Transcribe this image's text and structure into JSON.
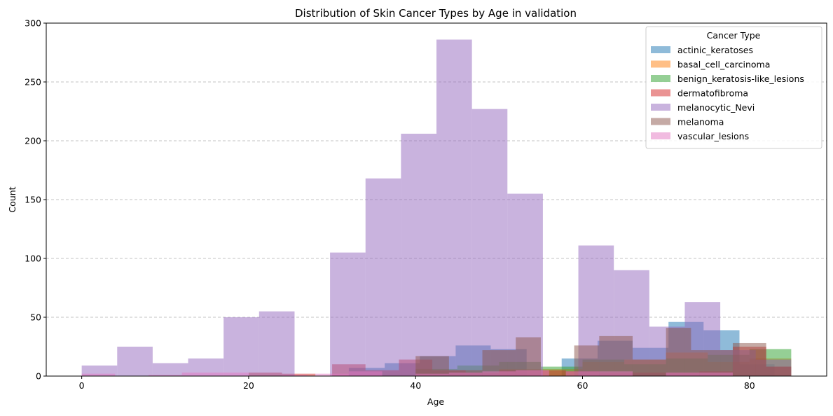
{
  "chart_data": {
    "type": "bar",
    "title": "Distribution of Skin Cancer Types by Age in validation",
    "xlabel": "Age",
    "ylabel": "Count",
    "xlim": [
      -4.25,
      89.25
    ],
    "ylim": [
      0,
      300
    ],
    "xticks": [
      0,
      20,
      40,
      60,
      80
    ],
    "yticks": [
      0,
      50,
      100,
      150,
      200,
      250,
      300
    ],
    "grid": {
      "axis": "y",
      "style": "dashed"
    },
    "legend": {
      "title": "Cancer Type",
      "position": "top-right"
    },
    "bar_alpha": 0.5,
    "series": [
      {
        "name": "actinic_keratoses",
        "color": "#1f77b4",
        "bins": [
          [
            32.0,
            36.3,
            7
          ],
          [
            36.3,
            40.5,
            11
          ],
          [
            40.5,
            44.8,
            17
          ],
          [
            44.8,
            49.0,
            26
          ],
          [
            49.0,
            53.3,
            23
          ],
          [
            57.5,
            61.8,
            15
          ],
          [
            61.8,
            66.0,
            30
          ],
          [
            66.0,
            70.3,
            24
          ],
          [
            70.3,
            74.5,
            46
          ],
          [
            74.5,
            78.8,
            39
          ],
          [
            78.8,
            83.0,
            10
          ]
        ]
      },
      {
        "name": "basal_cell_carcinoma",
        "color": "#ff7f0e",
        "bins": [
          [
            50.0,
            55.0,
            6
          ],
          [
            55.0,
            60.0,
            6
          ],
          [
            60.0,
            65.0,
            12
          ],
          [
            65.0,
            70.0,
            14
          ],
          [
            70.0,
            75.0,
            20
          ],
          [
            75.0,
            80.0,
            12
          ],
          [
            80.0,
            85.0,
            15
          ]
        ]
      },
      {
        "name": "benign_keratosis-like_lesions",
        "color": "#2ca02c",
        "bins": [
          [
            40.0,
            45.0,
            6
          ],
          [
            45.0,
            50.0,
            9
          ],
          [
            50.0,
            55.0,
            12
          ],
          [
            55.0,
            60.0,
            8
          ],
          [
            60.0,
            65.0,
            14
          ],
          [
            65.0,
            70.0,
            10
          ],
          [
            70.0,
            75.0,
            15
          ],
          [
            75.0,
            80.0,
            18
          ],
          [
            80.0,
            85.0,
            23
          ]
        ]
      },
      {
        "name": "dermatofibroma",
        "color": "#d62728",
        "bins": [
          [
            20.0,
            24.0,
            3
          ],
          [
            24.0,
            28.0,
            2
          ],
          [
            30.0,
            34.0,
            10
          ],
          [
            34.0,
            38.0,
            5
          ],
          [
            38.0,
            42.0,
            14
          ],
          [
            42.0,
            46.0,
            5
          ],
          [
            46.0,
            50.0,
            3
          ],
          [
            50.0,
            54.0,
            5
          ],
          [
            54.0,
            58.0,
            5
          ],
          [
            58.0,
            62.0,
            4
          ],
          [
            62.0,
            66.0,
            3
          ],
          [
            66.0,
            70.0,
            3
          ],
          [
            70.0,
            74.0,
            3
          ],
          [
            74.0,
            78.0,
            4
          ],
          [
            78.0,
            82.0,
            25
          ],
          [
            82.0,
            85.0,
            8
          ]
        ]
      },
      {
        "name": "melanocytic_Nevi",
        "color": "#9467bd",
        "bins": [
          [
            0.0,
            4.25,
            9
          ],
          [
            4.25,
            8.5,
            25
          ],
          [
            8.5,
            12.75,
            11
          ],
          [
            12.75,
            17.0,
            15
          ],
          [
            17.0,
            21.25,
            50
          ],
          [
            21.25,
            25.5,
            55
          ],
          [
            29.75,
            34.0,
            105
          ],
          [
            34.0,
            38.25,
            168
          ],
          [
            38.25,
            42.5,
            206
          ],
          [
            42.5,
            46.75,
            286
          ],
          [
            46.75,
            51.0,
            227
          ],
          [
            51.0,
            55.25,
            155
          ],
          [
            59.5,
            63.75,
            111
          ],
          [
            63.75,
            68.0,
            90
          ],
          [
            68.0,
            72.25,
            42
          ],
          [
            72.25,
            76.5,
            63
          ],
          [
            76.5,
            80.75,
            22
          ],
          [
            80.75,
            85.0,
            14
          ]
        ]
      },
      {
        "name": "melanoma",
        "color": "#8c564b",
        "bins": [
          [
            40.0,
            44.0,
            17
          ],
          [
            44.0,
            48.0,
            5
          ],
          [
            48.0,
            52.0,
            22
          ],
          [
            52.0,
            55.0,
            33
          ],
          [
            59.0,
            62.0,
            26
          ],
          [
            62.0,
            66.0,
            34
          ],
          [
            66.0,
            70.0,
            14
          ],
          [
            70.0,
            73.0,
            41
          ],
          [
            73.0,
            78.0,
            22
          ],
          [
            78.0,
            82.0,
            28
          ],
          [
            82.0,
            85.0,
            8
          ]
        ]
      },
      {
        "name": "vascular_lesions",
        "color": "#e377c2",
        "bins": [
          [
            0.0,
            4.0,
            2
          ],
          [
            8.0,
            12.0,
            1
          ],
          [
            12.0,
            16.0,
            3
          ],
          [
            16.0,
            20.0,
            3
          ],
          [
            24.0,
            27.0,
            1
          ],
          [
            28.0,
            32.0,
            2
          ],
          [
            32.0,
            36.0,
            4
          ],
          [
            40.0,
            44.0,
            2
          ],
          [
            44.0,
            48.0,
            3
          ],
          [
            48.0,
            52.0,
            4
          ],
          [
            52.0,
            56.0,
            5
          ],
          [
            58.0,
            62.0,
            4
          ],
          [
            62.0,
            66.0,
            4
          ],
          [
            70.0,
            74.0,
            3
          ],
          [
            74.0,
            78.0,
            3
          ]
        ]
      }
    ]
  }
}
